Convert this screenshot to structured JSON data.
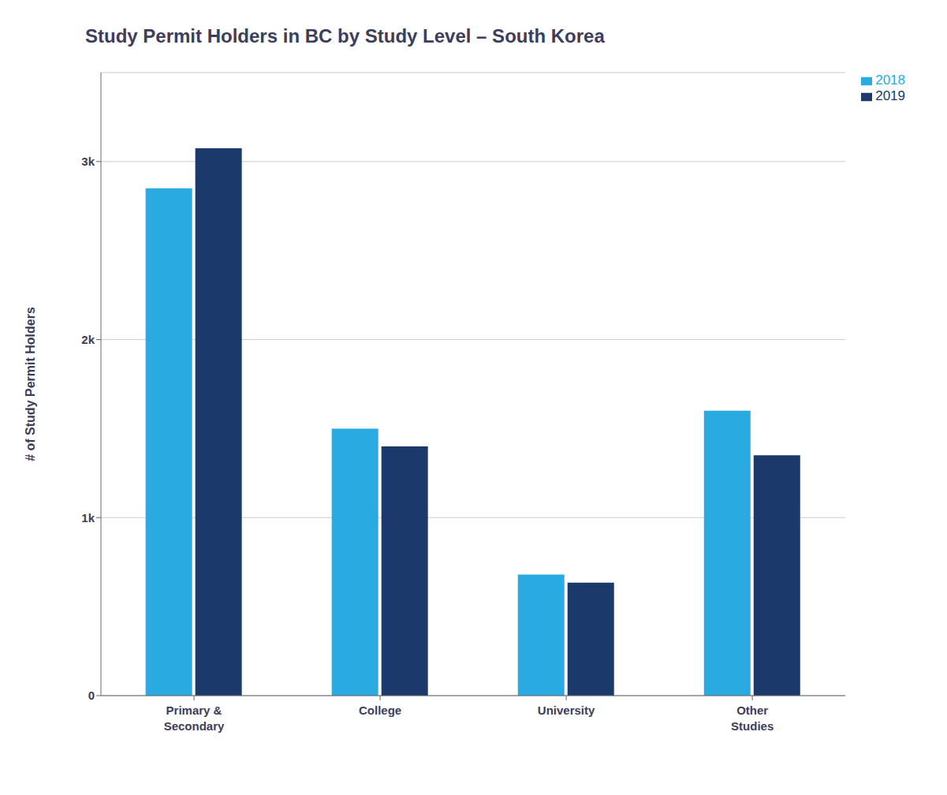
{
  "chart_data": {
    "type": "bar",
    "title": "Study Permit Holders in BC by Study Level – South Korea",
    "categories": [
      "Primary &\nSecondary",
      "College",
      "University",
      "Other\nStudies"
    ],
    "series": [
      {
        "name": "2018",
        "color": "#29ABE2",
        "values": [
          2850,
          1500,
          680,
          1600
        ]
      },
      {
        "name": "2019",
        "color": "#1B3A6B",
        "values": [
          3075,
          1400,
          635,
          1350
        ]
      }
    ],
    "ylabel": "# of Study Permit Holders",
    "ylim": [
      0,
      3500
    ],
    "yticks": [
      0,
      {
        "value": 1000,
        "label": "1k"
      },
      {
        "value": 2000,
        "label": "2k"
      },
      {
        "value": 3000,
        "label": "3k"
      }
    ],
    "grid": true,
    "legend": "upper right"
  }
}
